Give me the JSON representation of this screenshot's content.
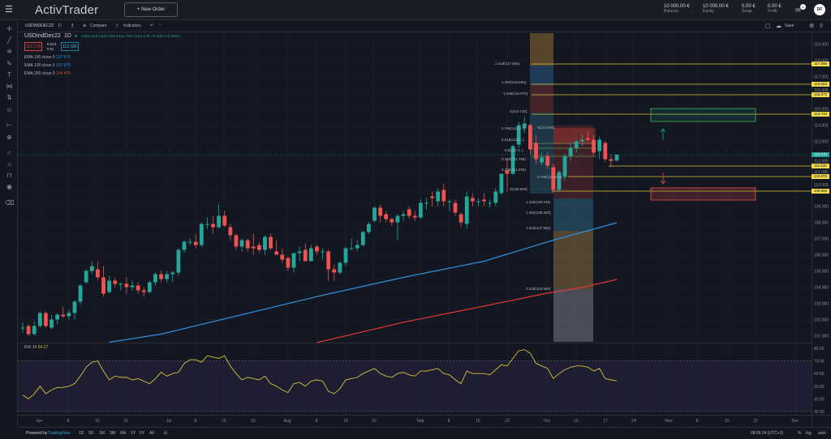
{
  "header": {
    "logo": "ActivTrader",
    "new_order": "+ New Order",
    "account": [
      {
        "value": "10 000.00 €",
        "label": "Balance"
      },
      {
        "value": "10 000.00 €",
        "label": "Equity"
      },
      {
        "value": "0.00 €",
        "label": "Swap"
      },
      {
        "value": "0.00 €",
        "label": "Profit"
      }
    ],
    "mail_badge": "4",
    "avatar": "DF"
  },
  "toolbar": {
    "symbol": "USDINDDEC22",
    "interval": "D",
    "compare": "Compare",
    "indicators": "Indicators",
    "save": "Save"
  },
  "legend": {
    "symbol": "USDIndDec22",
    "interval": "1D",
    "ohlc": "O111.815 H112.200 L111.765 C112.175 +0.325 (+0.29%)",
    "sell": "112.175",
    "spread_top": "0.010",
    "spread_bottom": "0.01",
    "buy": "112.185",
    "ema": [
      {
        "label": "EMA 100 close 0",
        "value": "107.975",
        "color": "#2f8fdc"
      },
      {
        "label": "EMA 100 close 0",
        "value": "107.975",
        "color": "#2f8fdc"
      },
      {
        "label": "EMA 200 close 0",
        "value": "104.475",
        "color": "#e0443f"
      }
    ]
  },
  "colors": {
    "up": "#26a69a",
    "down": "#ef5350",
    "ema100": "#2f8fdc",
    "ema200": "#e53935",
    "rsi": "#d6c33a",
    "fib_line": "#d8c43a"
  },
  "chart_data": {
    "type": "candlestick",
    "symbol": "USDIndDec22",
    "price_ticks": [
      119,
      118,
      117,
      116,
      115,
      114,
      113,
      112,
      111,
      110,
      109,
      108,
      107,
      106,
      105,
      104,
      103,
      102,
      101
    ],
    "time_ticks": [
      "Jun",
      "8",
      "15",
      "22",
      "Jul",
      "8",
      "15",
      "22",
      "Aug",
      "8",
      "15",
      "22",
      "Sep",
      "8",
      "15",
      "22",
      "Oct",
      "10",
      "17",
      "24",
      "Nov",
      "8",
      "15",
      "22",
      "Dec"
    ],
    "ohlc": [
      [
        101.5,
        101.8,
        101.2,
        101.5
      ],
      [
        101.6,
        101.7,
        101.0,
        101.1
      ],
      [
        101.1,
        101.9,
        101.0,
        101.6
      ],
      [
        101.6,
        102.5,
        101.5,
        102.4
      ],
      [
        102.4,
        102.5,
        101.5,
        101.6
      ],
      [
        101.5,
        102.3,
        101.4,
        102.0
      ],
      [
        102.0,
        102.4,
        101.7,
        102.3
      ],
      [
        102.3,
        102.8,
        102.1,
        102.2
      ],
      [
        102.2,
        102.6,
        102.0,
        102.4
      ],
      [
        102.4,
        103.2,
        102.0,
        103.1
      ],
      [
        103.1,
        104.2,
        102.9,
        104.1
      ],
      [
        104.3,
        105.1,
        104.2,
        105.0
      ],
      [
        105.0,
        105.6,
        104.8,
        105.3
      ],
      [
        105.1,
        105.6,
        104.4,
        104.6
      ],
      [
        104.6,
        105.3,
        103.4,
        103.6
      ],
      [
        103.7,
        104.7,
        103.6,
        104.4
      ],
      [
        104.4,
        104.6,
        104.0,
        104.2
      ],
      [
        104.2,
        104.3,
        103.8,
        104.2
      ],
      [
        104.2,
        104.6,
        103.6,
        104.0
      ],
      [
        104.0,
        104.4,
        103.8,
        104.1
      ],
      [
        104.1,
        104.3,
        103.6,
        103.8
      ],
      [
        103.8,
        104.0,
        103.4,
        103.7
      ],
      [
        103.7,
        104.4,
        103.6,
        104.3
      ],
      [
        104.3,
        104.9,
        104.1,
        104.8
      ],
      [
        104.8,
        105.0,
        104.3,
        104.5
      ],
      [
        104.5,
        105.0,
        104.3,
        104.8
      ],
      [
        104.8,
        105.0,
        104.3,
        104.9
      ],
      [
        104.9,
        106.4,
        104.7,
        106.3
      ],
      [
        106.3,
        106.9,
        106.1,
        106.8
      ],
      [
        106.8,
        107.0,
        106.6,
        106.8
      ],
      [
        106.8,
        107.3,
        106.4,
        106.6
      ],
      [
        106.6,
        108.0,
        106.5,
        107.9
      ],
      [
        107.9,
        108.3,
        107.6,
        107.9
      ],
      [
        107.9,
        108.4,
        107.3,
        107.7
      ],
      [
        107.7,
        109.1,
        107.6,
        108.4
      ],
      [
        108.4,
        108.7,
        107.7,
        107.8
      ],
      [
        107.7,
        107.9,
        106.9,
        107.2
      ],
      [
        107.2,
        107.3,
        106.3,
        106.5
      ],
      [
        106.5,
        107.0,
        106.2,
        106.9
      ],
      [
        106.9,
        107.0,
        106.2,
        106.4
      ],
      [
        106.5,
        107.3,
        106.0,
        106.4
      ],
      [
        106.6,
        106.8,
        106.1,
        106.3
      ],
      [
        106.3,
        107.2,
        106.0,
        107.1
      ],
      [
        107.1,
        107.3,
        106.3,
        106.4
      ],
      [
        106.2,
        106.9,
        106.0,
        106.0
      ],
      [
        106.0,
        106.4,
        105.5,
        105.7
      ],
      [
        105.8,
        105.9,
        105.0,
        105.2
      ],
      [
        105.2,
        106.1,
        104.9,
        106.1
      ],
      [
        106.1,
        106.5,
        105.6,
        106.2
      ],
      [
        106.3,
        106.7,
        105.6,
        105.6
      ],
      [
        105.6,
        106.6,
        105.6,
        106.4
      ],
      [
        106.5,
        106.6,
        106.0,
        106.2
      ],
      [
        106.2,
        106.4,
        105.7,
        106.2
      ],
      [
        106.2,
        106.3,
        104.4,
        105.1
      ],
      [
        105.1,
        105.4,
        104.4,
        104.9
      ],
      [
        104.9,
        105.6,
        104.8,
        105.5
      ],
      [
        105.5,
        106.5,
        105.3,
        106.4
      ],
      [
        106.4,
        107.0,
        106.3,
        106.4
      ],
      [
        106.4,
        106.9,
        106.2,
        106.6
      ],
      [
        106.6,
        107.5,
        106.5,
        107.4
      ],
      [
        107.4,
        108.0,
        107.3,
        107.9
      ],
      [
        108.1,
        109.0,
        108.0,
        108.9
      ],
      [
        108.9,
        109.1,
        108.0,
        108.4
      ],
      [
        108.5,
        108.7,
        108.0,
        108.2
      ],
      [
        108.2,
        108.3,
        107.8,
        108.0
      ],
      [
        108.0,
        108.5,
        106.9,
        108.4
      ],
      [
        108.4,
        108.7,
        108.1,
        108.5
      ],
      [
        108.8,
        109.0,
        108.2,
        108.4
      ],
      [
        108.4,
        108.7,
        108.1,
        108.3
      ],
      [
        108.3,
        109.4,
        108.2,
        109.2
      ],
      [
        109.2,
        109.5,
        108.8,
        109.2
      ],
      [
        109.6,
        109.9,
        109.0,
        109.5
      ],
      [
        109.3,
        110.1,
        109.0,
        109.9
      ],
      [
        110.0,
        110.4,
        109.0,
        109.3
      ],
      [
        109.3,
        109.4,
        108.7,
        109.3
      ],
      [
        109.2,
        109.4,
        108.4,
        108.6
      ],
      [
        108.5,
        108.6,
        107.7,
        108.0
      ],
      [
        107.9,
        109.9,
        107.6,
        109.6
      ],
      [
        109.5,
        109.8,
        109.0,
        109.3
      ],
      [
        109.3,
        109.5,
        109.0,
        109.3
      ],
      [
        109.4,
        109.8,
        109.0,
        109.3
      ],
      [
        109.2,
        109.4,
        108.9,
        109.2
      ],
      [
        109.2,
        110.1,
        109.0,
        109.9
      ],
      [
        109.8,
        111.0,
        109.7,
        111.0
      ],
      [
        111.2,
        111.9,
        109.9,
        111.0
      ],
      [
        111.0,
        112.8,
        110.9,
        112.7
      ],
      [
        112.8,
        114.2,
        112.6,
        114.0
      ],
      [
        113.8,
        114.5,
        113.5,
        114.1
      ],
      [
        114.0,
        114.1,
        112.2,
        112.5
      ],
      [
        112.9,
        113.4,
        111.6,
        111.9
      ],
      [
        111.7,
        112.3,
        111.5,
        112.0
      ],
      [
        112.1,
        112.3,
        111.3,
        111.5
      ],
      [
        111.4,
        111.6,
        109.8,
        110.0
      ],
      [
        110.0,
        111.2,
        109.9,
        111.1
      ],
      [
        110.8,
        112.2,
        110.6,
        112.1
      ],
      [
        112.1,
        112.9,
        111.8,
        112.6
      ],
      [
        112.6,
        113.1,
        112.3,
        113.0
      ],
      [
        113.0,
        113.4,
        112.7,
        113.1
      ],
      [
        113.2,
        113.6,
        113.0,
        113.1
      ],
      [
        113.1,
        113.4,
        112.1,
        112.3
      ],
      [
        112.4,
        113.3,
        111.9,
        113.1
      ],
      [
        112.9,
        113.0,
        111.7,
        111.9
      ],
      [
        111.9,
        112.2,
        111.4,
        111.8
      ],
      [
        111.815,
        112.2,
        111.765,
        112.175
      ]
    ],
    "ema100": [
      [
        15,
        100.6
      ],
      [
        24,
        101.1
      ],
      [
        38,
        102.3
      ],
      [
        52,
        103.5
      ],
      [
        66,
        104.6
      ],
      [
        80,
        105.6
      ],
      [
        92,
        106.9
      ],
      [
        103,
        107.975
      ]
    ],
    "ema200": [
      [
        51,
        100.58
      ],
      [
        66,
        101.83
      ],
      [
        80,
        102.83
      ],
      [
        91,
        103.63
      ],
      [
        97,
        103.98
      ],
      [
        103,
        104.475
      ]
    ],
    "rsi": {
      "label": "RSI 14",
      "value": "54.17",
      "ticks": [
        "80.00",
        "70.00",
        "60.00",
        "50.00",
        "40.00",
        "30.00"
      ],
      "band": [
        30,
        70
      ],
      "values": [
        43,
        40,
        44,
        50,
        44,
        47,
        49,
        49,
        50,
        52,
        58,
        65,
        69,
        70,
        62,
        55,
        58,
        57,
        57,
        55,
        56,
        54,
        52,
        56,
        61,
        58,
        60,
        61,
        68,
        71,
        71,
        69,
        74,
        73,
        72,
        74,
        66,
        60,
        55,
        57,
        56,
        55,
        58,
        52,
        50,
        47,
        45,
        52,
        53,
        50,
        54,
        55,
        54,
        46,
        44,
        48,
        55,
        56,
        57,
        60,
        62,
        64,
        60,
        58,
        57,
        60,
        61,
        59,
        58,
        62,
        62,
        63,
        64,
        60,
        59,
        55,
        52,
        62,
        60,
        60,
        60,
        59,
        63,
        67,
        66,
        72,
        78,
        79,
        76,
        68,
        66,
        64,
        56,
        60,
        63,
        65,
        66,
        66,
        65,
        62,
        64,
        56,
        55,
        54.17
      ]
    },
    "price_labels": [
      {
        "value": "117.695"
      },
      {
        "value": "116.565"
      },
      {
        "value": "115.870"
      },
      {
        "value": "114.740"
      },
      {
        "value": "111.640"
      },
      {
        "value": "110.875"
      },
      {
        "value": "109.960"
      }
    ],
    "current_price": "112.175",
    "fib_labels": [
      {
        "text": "1.618(117.695)",
        "color": "#3d8fd6"
      },
      {
        "text": "1.382(116.565)",
        "color": "#e0443f"
      },
      {
        "text": "1.236(115.870)",
        "color": "#7fbf5a"
      },
      {
        "text": "1(114.740)",
        "color": "#9aa0aa"
      },
      {
        "text": "0.786(113.8..)",
        "color": "#3d8fd6"
      },
      {
        "text": "0.618(112.9..)",
        "color": "#3d8fd6"
      },
      {
        "text": "0.5(112.3..)",
        "color": "#7fbf5a"
      },
      {
        "text": "0.382(111.785)",
        "color": "#9aa0aa"
      },
      {
        "text": "0.236(111.090)",
        "color": "#e0443f"
      },
      {
        "text": "0(109.960)",
        "color": "#9aa0aa"
      },
      {
        "text": "1.236(109.045)",
        "color": "#7fbf5a"
      },
      {
        "text": "1.382(108.480)",
        "color": "#e0443f"
      },
      {
        "text": "1.618(107.560)",
        "color": "#3d8fd6"
      },
      {
        "text": "2.618(103.680)",
        "color": "#e0443f"
      },
      {
        "text": "0(113.840)",
        "color": "#9aa0aa"
      },
      {
        "text": "0.786(110.875)",
        "color": "#9aa0aa"
      }
    ]
  },
  "bottom": {
    "powered": "Powered by",
    "brand": "TradingView",
    "ranges": [
      "1D",
      "5D",
      "1M",
      "3M",
      "6M",
      "1Y",
      "5Y",
      "All"
    ],
    "time": "08:06:24 (UTC+2)",
    "percent": "%",
    "log": "log",
    "auto": "auto"
  }
}
